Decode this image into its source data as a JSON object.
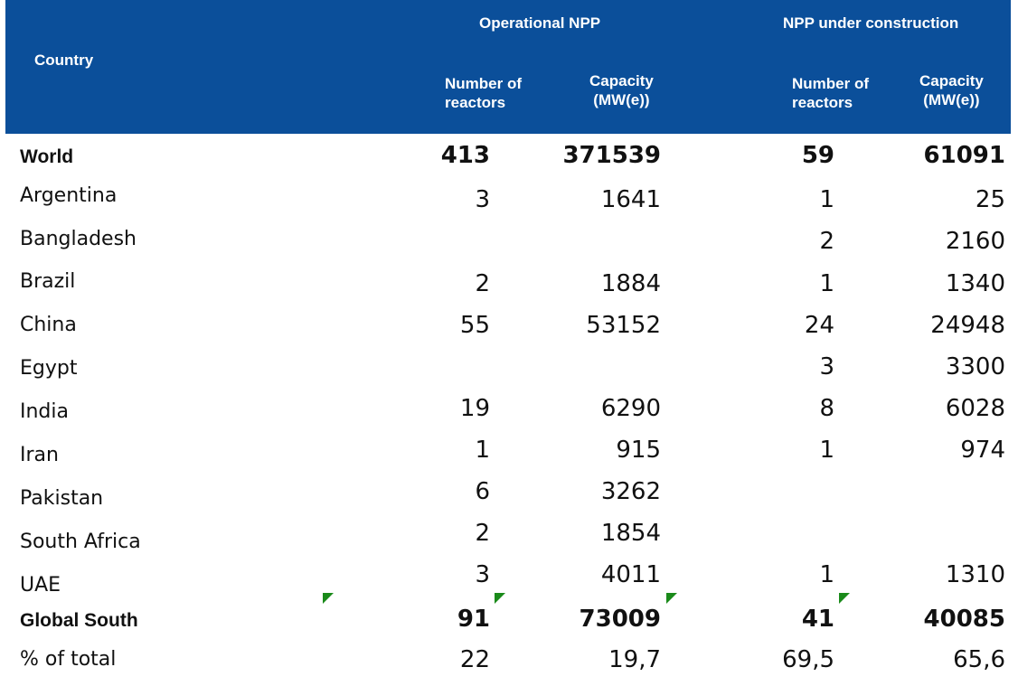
{
  "header": {
    "country": "Country",
    "operational": "Operational NPP",
    "under_construction": "NPP under construction",
    "number_of_reactors_1": "Number of",
    "number_of_reactors_2": "reactors",
    "capacity_1": "Capacity",
    "capacity_2": "(MW(e))"
  },
  "rows": [
    {
      "country": "World",
      "op_reactors": "413",
      "op_capacity": "371539",
      "uc_reactors": "59",
      "uc_capacity": "61091"
    },
    {
      "country": "Argentina",
      "op_reactors": "3",
      "op_capacity": "1641",
      "uc_reactors": "1",
      "uc_capacity": "25"
    },
    {
      "country": "Bangladesh",
      "op_reactors": "",
      "op_capacity": "",
      "uc_reactors": "2",
      "uc_capacity": "2160"
    },
    {
      "country": "Brazil",
      "op_reactors": "2",
      "op_capacity": "1884",
      "uc_reactors": "1",
      "uc_capacity": "1340"
    },
    {
      "country": "China",
      "op_reactors": "55",
      "op_capacity": "53152",
      "uc_reactors": "24",
      "uc_capacity": "24948"
    },
    {
      "country": "Egypt",
      "op_reactors": "",
      "op_capacity": "",
      "uc_reactors": "3",
      "uc_capacity": "3300"
    },
    {
      "country": "India",
      "op_reactors": "19",
      "op_capacity": "6290",
      "uc_reactors": "8",
      "uc_capacity": "6028"
    },
    {
      "country": "Iran",
      "op_reactors": "1",
      "op_capacity": "915",
      "uc_reactors": "1",
      "uc_capacity": "974"
    },
    {
      "country": "Pakistan",
      "op_reactors": "6",
      "op_capacity": "3262",
      "uc_reactors": "",
      "uc_capacity": ""
    },
    {
      "country": "South Africa",
      "op_reactors": "2",
      "op_capacity": "1854",
      "uc_reactors": "",
      "uc_capacity": ""
    },
    {
      "country": "UAE",
      "op_reactors": "3",
      "op_capacity": "4011",
      "uc_reactors": "1",
      "uc_capacity": "1310"
    },
    {
      "country": "Global South",
      "op_reactors": "91",
      "op_capacity": "73009",
      "uc_reactors": "41",
      "uc_capacity": "40085"
    },
    {
      "country": "% of total",
      "op_reactors": "22",
      "op_capacity": "19,7",
      "uc_reactors": "69,5",
      "uc_capacity": "65,6"
    }
  ],
  "colors": {
    "header_bg": "#0b4f9a",
    "header_text": "#ffffff",
    "comment_flag": "#1a8a1a"
  }
}
